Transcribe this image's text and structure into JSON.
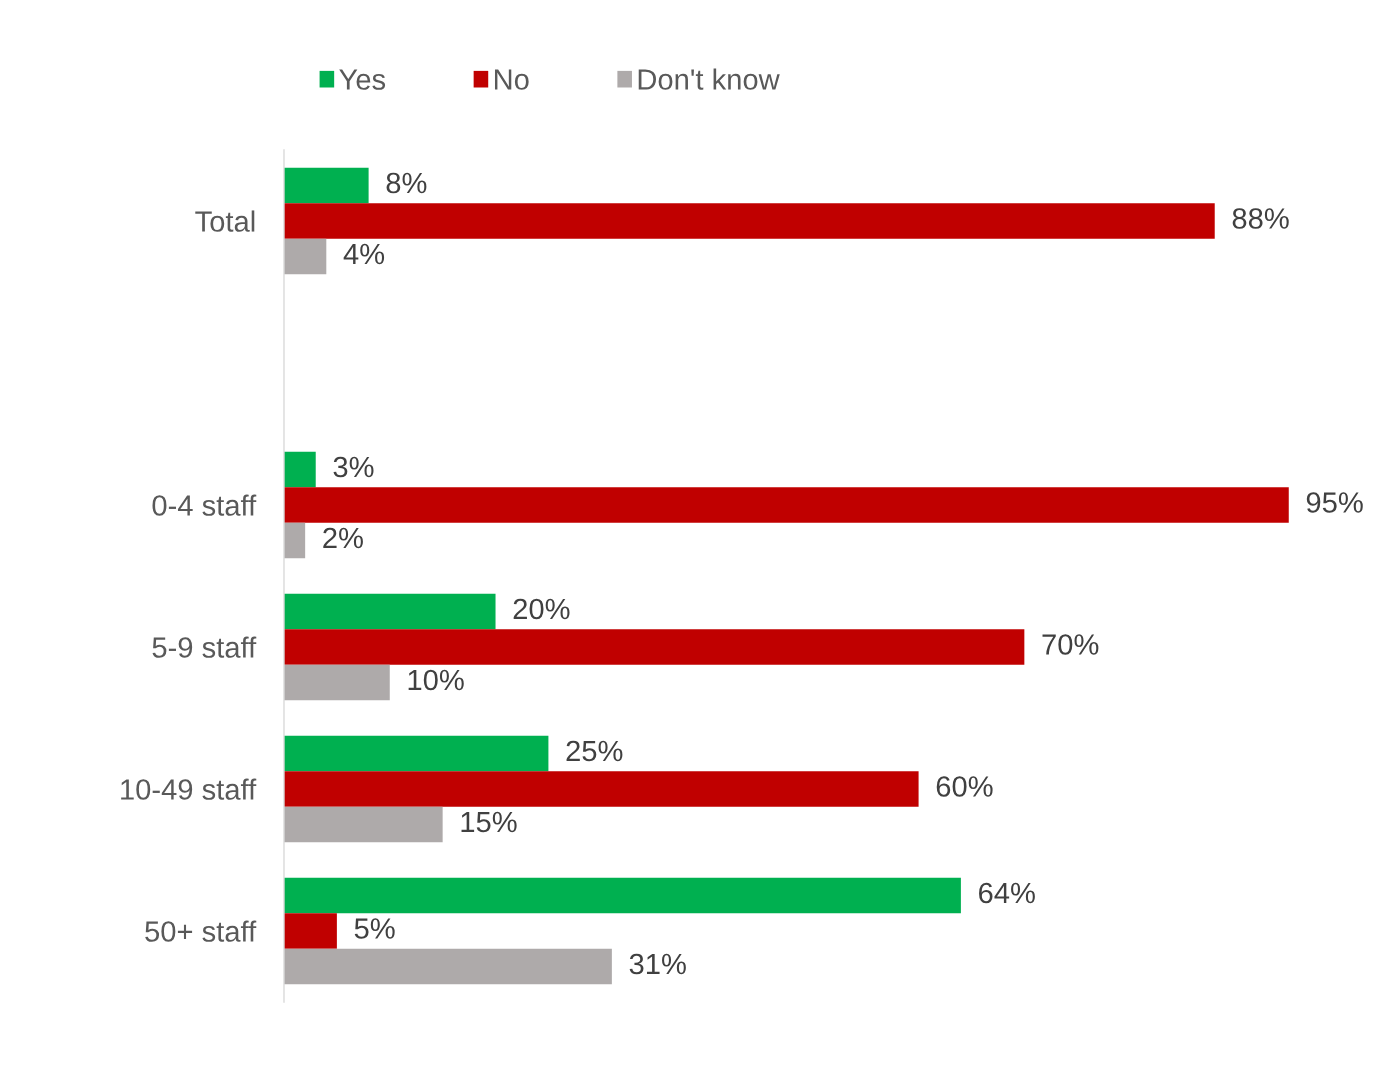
{
  "chart_data": {
    "type": "bar",
    "orientation": "horizontal",
    "categories": [
      "Total",
      null,
      "0-4 staff",
      "5-9 staff",
      "10-49 staff",
      "50+ staff"
    ],
    "series": [
      {
        "name": "Yes",
        "color": "#00b050",
        "values": [
          8,
          null,
          3,
          20,
          25,
          64
        ],
        "value_labels": [
          "8%",
          null,
          "3%",
          "20%",
          "25%",
          "64%"
        ]
      },
      {
        "name": "No",
        "color": "#c00000",
        "values": [
          88,
          null,
          95,
          70,
          60,
          5
        ],
        "value_labels": [
          "88%",
          null,
          "95%",
          "70%",
          "60%",
          "5%"
        ]
      },
      {
        "name": "Don't know",
        "color": "#aeaaaa",
        "values": [
          4,
          null,
          2,
          10,
          15,
          31
        ],
        "value_labels": [
          "4%",
          null,
          "2%",
          "10%",
          "15%",
          "31%"
        ]
      }
    ],
    "legend": "top",
    "tick_labels": "y"
  }
}
